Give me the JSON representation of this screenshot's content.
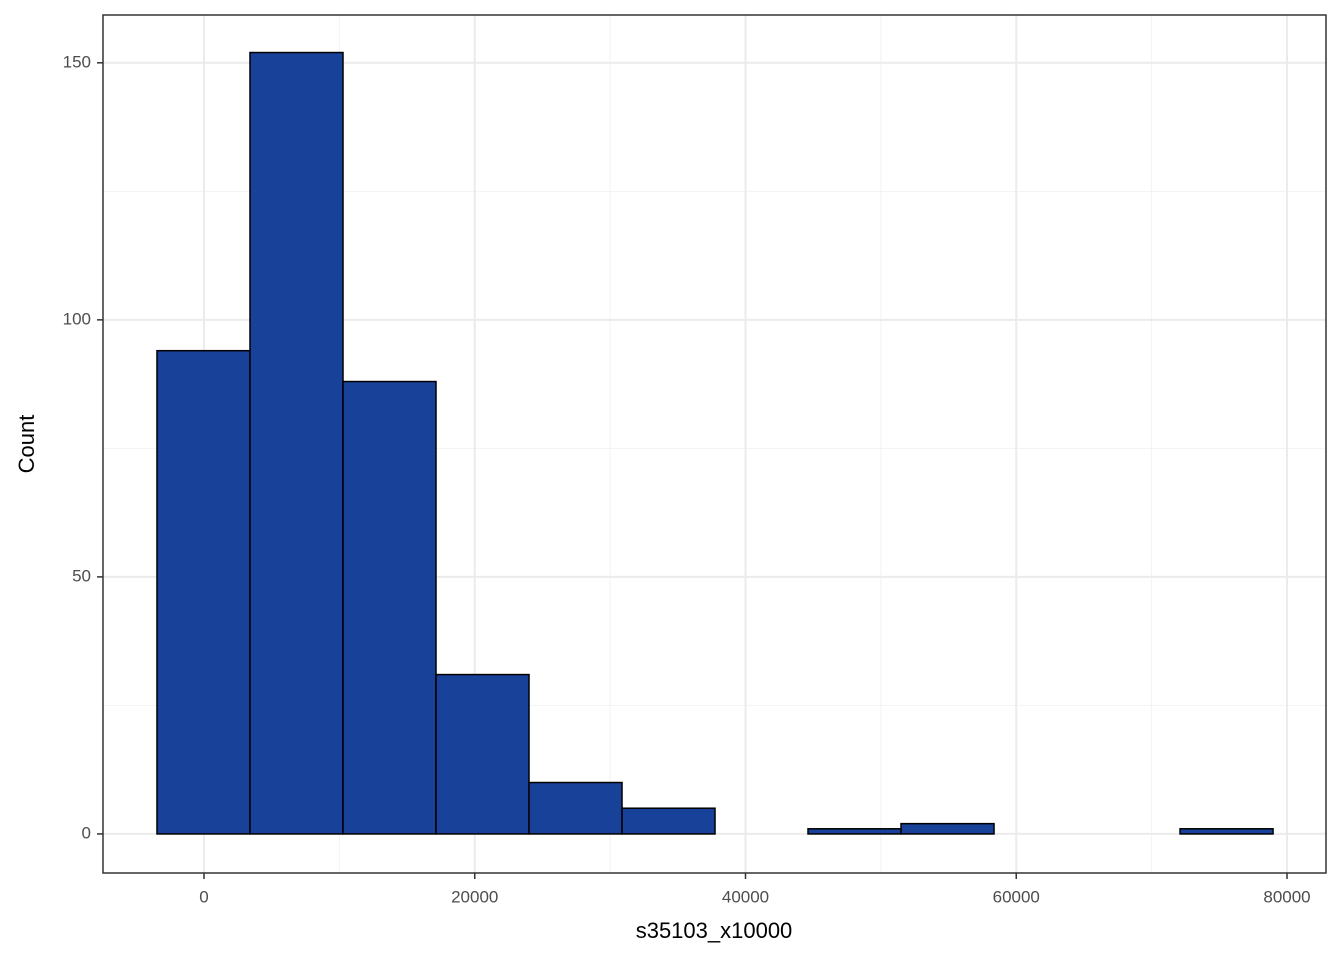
{
  "chart_data": {
    "type": "histogram",
    "x_label": "s35103_x10000",
    "y_label": "Count",
    "bins": [
      -3472,
      3398,
      10268,
      17138,
      24008,
      30878,
      37748,
      44618,
      51488,
      58358,
      65228,
      72098,
      78968
    ],
    "values": [
      94,
      152,
      88,
      31,
      10,
      5,
      0,
      1,
      2,
      0,
      0,
      1
    ],
    "color": "#18429a",
    "xlim": [
      -7460,
      82880
    ],
    "ylim": [
      -7.6,
      159.3
    ],
    "xticks": [
      0,
      20000,
      40000,
      60000,
      80000
    ],
    "yticks": [
      0,
      50,
      100,
      150
    ],
    "grid": true
  }
}
